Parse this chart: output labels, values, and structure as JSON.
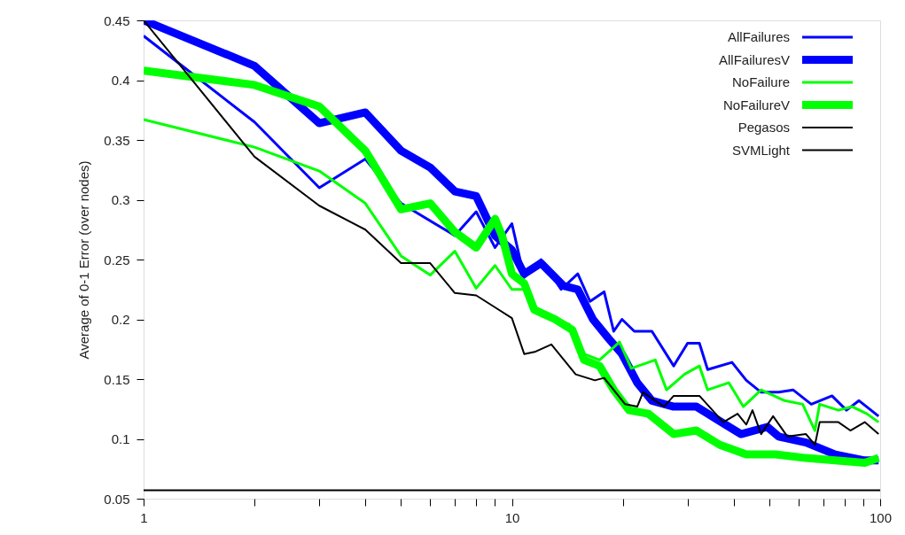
{
  "chart_data": {
    "type": "line",
    "ylabel": "Average of 0-1 Error (over nodes)",
    "log": "x",
    "xlim": [
      1,
      100
    ],
    "ylim": [
      0.05,
      0.45
    ],
    "xticks": [
      1,
      {
        "value": 2,
        "label": null
      },
      {
        "value": 3,
        "label": null
      },
      {
        "value": 4,
        "label": null
      },
      {
        "value": 5,
        "label": null
      },
      {
        "value": 6,
        "label": null
      },
      {
        "value": 7,
        "label": null
      },
      {
        "value": 8,
        "label": null
      },
      {
        "value": 9,
        "label": null
      },
      10,
      {
        "value": 20,
        "label": null
      },
      {
        "value": 30,
        "label": null
      },
      {
        "value": 40,
        "label": null
      },
      {
        "value": 50,
        "label": null
      },
      {
        "value": 60,
        "label": null
      },
      {
        "value": 70,
        "label": null
      },
      {
        "value": 80,
        "label": null
      },
      {
        "value": 90,
        "label": null
      },
      100
    ],
    "yticks": [
      0.05,
      0.1,
      0.15,
      0.2,
      0.25,
      0.3,
      0.35,
      0.4,
      0.45
    ],
    "grid": false,
    "legend": "top right",
    "marker": "none",
    "line_style": "solid",
    "series": [
      {
        "name": "AllFailures",
        "color": "#0000ff",
        "x": [
          1,
          2,
          3,
          4,
          5,
          7,
          8,
          9,
          10,
          10.8,
          12,
          13.6,
          15.1,
          16.3,
          17.8,
          18.9,
          19.9,
          21.5,
          24,
          27.5,
          30,
          32.3,
          34,
          39.6,
          43.3,
          47.5,
          53,
          58,
          65,
          74,
          81,
          87.6,
          99
        ],
        "values": [
          0.437,
          0.365,
          0.31,
          0.334,
          0.297,
          0.27,
          0.29,
          0.26,
          0.28,
          0.235,
          0.25,
          0.225,
          0.238,
          0.215,
          0.223,
          0.19,
          0.2,
          0.19,
          0.19,
          0.161,
          0.18,
          0.18,
          0.158,
          0.164,
          0.149,
          0.139,
          0.139,
          0.141,
          0.129,
          0.136,
          0.124,
          0.132,
          0.119
        ]
      },
      {
        "name": "AllFailuresV",
        "color": "#0000ff",
        "x": [
          1,
          2,
          3,
          4,
          5,
          6,
          7,
          8,
          9,
          10,
          10.8,
          12,
          13.8,
          15.1,
          16.6,
          18.3,
          19.9,
          21.9,
          24,
          27.5,
          31.7,
          38,
          41.9,
          49.4,
          53,
          62.9,
          75.5,
          90.8,
          99
        ],
        "values": [
          0.45,
          0.412,
          0.364,
          0.373,
          0.341,
          0.327,
          0.307,
          0.303,
          0.27,
          0.258,
          0.238,
          0.247,
          0.228,
          0.225,
          0.2,
          0.184,
          0.171,
          0.147,
          0.132,
          0.127,
          0.127,
          0.112,
          0.104,
          0.11,
          0.102,
          0.097,
          0.087,
          0.082,
          0.082
        ]
      },
      {
        "name": "NoFailure",
        "color": "#00ff00",
        "x": [
          1,
          2,
          3,
          4,
          5,
          6,
          7,
          8,
          9,
          10,
          10.8,
          12,
          14.3,
          15.7,
          17.3,
          19.6,
          21.1,
          24.5,
          26.3,
          29.4,
          32.3,
          34,
          38.8,
          42.5,
          47.5,
          55,
          61.6,
          66.5,
          68.5,
          77,
          84,
          92,
          99
        ],
        "values": [
          0.367,
          0.344,
          0.324,
          0.297,
          0.253,
          0.237,
          0.257,
          0.226,
          0.245,
          0.225,
          0.225,
          0.203,
          0.196,
          0.171,
          0.166,
          0.181,
          0.159,
          0.166,
          0.141,
          0.154,
          0.161,
          0.141,
          0.147,
          0.127,
          0.141,
          0.132,
          0.129,
          0.107,
          0.129,
          0.124,
          0.127,
          0.121,
          0.114
        ]
      },
      {
        "name": "NoFailureV",
        "color": "#00ff00",
        "x": [
          1,
          2,
          3,
          4,
          5,
          6,
          7,
          8,
          9,
          9.4,
          10,
          10.8,
          11.5,
          13.1,
          14.6,
          15.7,
          17.3,
          18.9,
          20.8,
          23.5,
          27.5,
          31.7,
          36.7,
          43.3,
          52,
          62.9,
          75.5,
          90.8,
          99
        ],
        "values": [
          0.408,
          0.396,
          0.378,
          0.341,
          0.292,
          0.297,
          0.273,
          0.26,
          0.284,
          0.27,
          0.238,
          0.23,
          0.208,
          0.2,
          0.191,
          0.166,
          0.161,
          0.141,
          0.124,
          0.121,
          0.104,
          0.107,
          0.095,
          0.087,
          0.087,
          0.084,
          0.082,
          0.08,
          0.084
        ]
      },
      {
        "name": "Pegasos",
        "color": "#000000",
        "x": [
          1,
          2,
          3,
          4,
          5,
          6,
          7,
          8,
          9,
          10,
          10.8,
          11.6,
          12.8,
          14.9,
          16.8,
          17.8,
          20.3,
          21.9,
          22.7,
          25.9,
          27.5,
          30.5,
          32.3,
          37.5,
          41,
          43.3,
          45,
          47.5,
          51.2,
          56,
          62.9,
          66.5,
          68.5,
          77,
          83,
          90.8,
          99
        ],
        "values": [
          0.45,
          0.336,
          0.295,
          0.275,
          0.247,
          0.247,
          0.222,
          0.22,
          0.21,
          0.201,
          0.171,
          0.173,
          0.179,
          0.154,
          0.149,
          0.151,
          0.129,
          0.127,
          0.139,
          0.127,
          0.136,
          0.136,
          0.136,
          0.114,
          0.121,
          0.112,
          0.124,
          0.104,
          0.119,
          0.102,
          0.104,
          0.095,
          0.114,
          0.114,
          0.107,
          0.114,
          0.104
        ]
      },
      {
        "name": "SVMLight",
        "color": "#000000",
        "x": [
          1,
          100
        ],
        "values": [
          0.057,
          0.057
        ]
      }
    ]
  }
}
